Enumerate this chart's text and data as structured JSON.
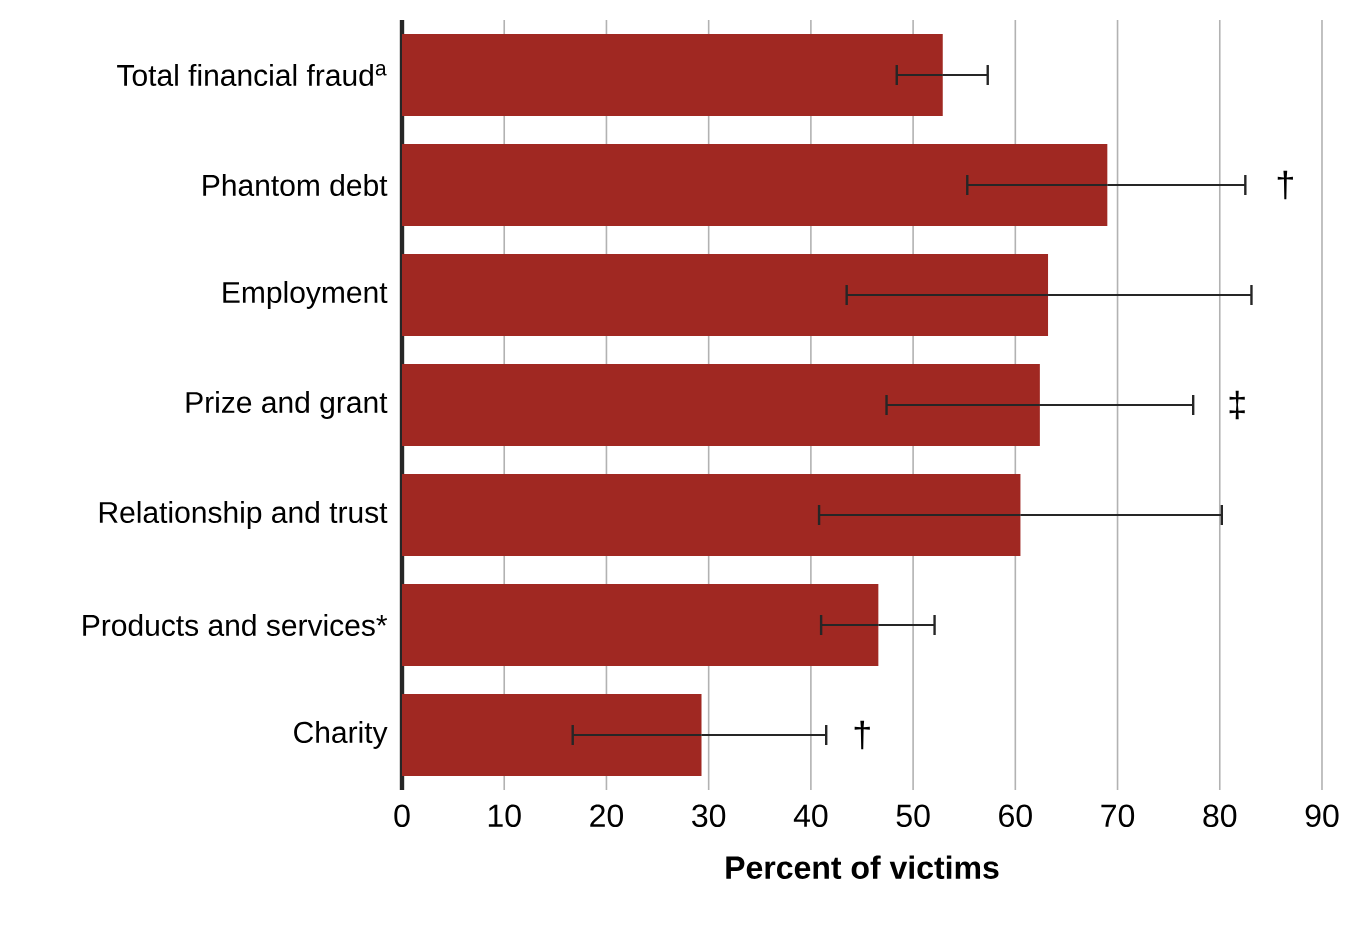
{
  "chart_data": {
    "type": "bar",
    "orientation": "horizontal",
    "xlabel": "**Percent of victims**",
    "categories": [
      "Total financial fraud$^{a}$",
      "Phantom debt",
      "Employment",
      "Prize and grant",
      "Relationship and trust",
      "Products and services*",
      "Charity"
    ],
    "values": [
      52.9,
      69.0,
      63.2,
      62.4,
      60.5,
      46.6,
      29.3
    ],
    "errors": [
      [
        48.4,
        57.3
      ],
      [
        55.3,
        82.5
      ],
      [
        43.5,
        83.1
      ],
      [
        47.4,
        77.4
      ],
      [
        40.8,
        80.2
      ],
      [
        41.0,
        52.1
      ],
      [
        16.7,
        41.5
      ]
    ],
    "color": "#a02822",
    "xlim": [
      0,
      90
    ],
    "xticks": [
      0,
      10,
      20,
      30,
      40,
      50,
      60,
      70,
      80,
      90
    ],
    "grid": "x",
    "annotations": [
      "†",
      "‡",
      "†"
    ]
  }
}
